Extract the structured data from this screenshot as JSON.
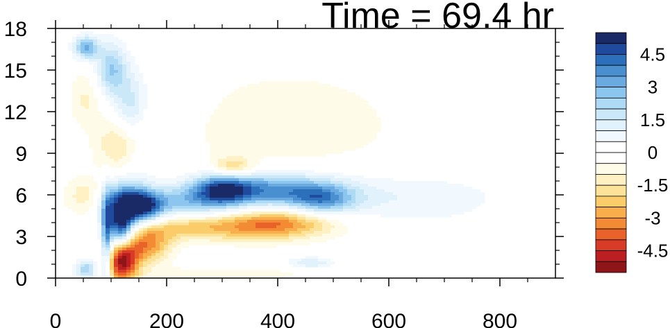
{
  "chart_data": {
    "type": "heatmap",
    "title": "Time = 69.4 hr",
    "xlabel": "",
    "ylabel": "",
    "xlim": [
      0,
      900
    ],
    "ylim": [
      0,
      18
    ],
    "x_ticks": [
      "0",
      "200",
      "400",
      "600",
      "800"
    ],
    "y_ticks": [
      "0",
      "3",
      "6",
      "9",
      "12",
      "15",
      "18"
    ],
    "colorbar": {
      "range": [
        -5.5,
        5.5
      ],
      "step": 0.5,
      "tick_labels": [
        "4.5",
        "3",
        "1.5",
        "0",
        "-1.5",
        "-3",
        "-4.5"
      ],
      "colors": [
        "#1a2a66",
        "#1f4a9e",
        "#2c6fba",
        "#4a8fd0",
        "#6aaae0",
        "#8cc6ee",
        "#aedaf6",
        "#cbe8f9",
        "#e2f2fc",
        "#f2f9fe",
        "#ffffff",
        "#ffffff",
        "#fffbe9",
        "#fff1c4",
        "#fde39a",
        "#fbcd6a",
        "#f8ae4c",
        "#f38a34",
        "#e8622a",
        "#d83b26",
        "#bb1f22",
        "#8e1518"
      ]
    },
    "features": [
      {
        "x": 375,
        "y": 6.3,
        "sx": 90,
        "sy": 0.9,
        "v": 3.8
      },
      {
        "x": 300,
        "y": 6.4,
        "sx": 35,
        "sy": 0.8,
        "v": 3.0
      },
      {
        "x": 480,
        "y": 5.6,
        "sx": 40,
        "sy": 0.8,
        "v": 2.6
      },
      {
        "x": 560,
        "y": 5.8,
        "sx": 120,
        "sy": 1.3,
        "v": 0.8
      },
      {
        "x": 700,
        "y": 5.8,
        "sx": 110,
        "sy": 1.5,
        "v": 0.5
      },
      {
        "x": 230,
        "y": 5.3,
        "sx": 55,
        "sy": 0.9,
        "v": 2.2
      },
      {
        "x": 160,
        "y": 5.1,
        "sx": 25,
        "sy": 0.8,
        "v": 4.0
      },
      {
        "x": 120,
        "y": 5.5,
        "sx": 30,
        "sy": 1.1,
        "v": 4.2
      },
      {
        "x": 118,
        "y": 3.5,
        "sx": 16,
        "sy": 1.1,
        "v": 4.8
      },
      {
        "x": 92,
        "y": 2.5,
        "sx": 7,
        "sy": 2.5,
        "v": 3.2
      },
      {
        "x": 100,
        "y": 15.0,
        "sx": 20,
        "sy": 1.4,
        "v": 2.6
      },
      {
        "x": 135,
        "y": 12.3,
        "sx": 20,
        "sy": 1.8,
        "v": 1.8
      },
      {
        "x": 55,
        "y": 16.6,
        "sx": 16,
        "sy": 0.6,
        "v": 3.2
      },
      {
        "x": 145,
        "y": 8.6,
        "sx": 30,
        "sy": 1.2,
        "v": 1.0
      },
      {
        "x": 120,
        "y": 1.3,
        "sx": 20,
        "sy": 1.1,
        "v": -5.4
      },
      {
        "x": 165,
        "y": 2.5,
        "sx": 30,
        "sy": 1.0,
        "v": -3.2
      },
      {
        "x": 230,
        "y": 3.8,
        "sx": 50,
        "sy": 0.7,
        "v": -2.0
      },
      {
        "x": 410,
        "y": 4.0,
        "sx": 70,
        "sy": 0.8,
        "v": -3.0
      },
      {
        "x": 330,
        "y": 3.6,
        "sx": 60,
        "sy": 0.7,
        "v": -1.5
      },
      {
        "x": 320,
        "y": 8.0,
        "sx": 25,
        "sy": 0.5,
        "v": -2.0
      },
      {
        "x": 120,
        "y": 9.4,
        "sx": 30,
        "sy": 1.4,
        "v": -2.0
      },
      {
        "x": 60,
        "y": 5.9,
        "sx": 30,
        "sy": 1.0,
        "v": -1.5
      },
      {
        "x": 55,
        "y": 13.0,
        "sx": 20,
        "sy": 1.5,
        "v": -1.0
      },
      {
        "x": 420,
        "y": 11.0,
        "sx": 200,
        "sy": 4.0,
        "v": -0.7
      },
      {
        "x": 300,
        "y": 0.3,
        "sx": 120,
        "sy": 0.35,
        "v": -0.9
      },
      {
        "x": 460,
        "y": 1.1,
        "sx": 30,
        "sy": 0.3,
        "v": 1.5
      },
      {
        "x": 55,
        "y": 0.6,
        "sx": 14,
        "sy": 0.5,
        "v": 2.5
      },
      {
        "x": 840,
        "y": 9.5,
        "sx": 40,
        "sy": 1.2,
        "v": 0.5
      },
      {
        "x": 210,
        "y": 14.5,
        "sx": 40,
        "sy": 2.0,
        "v": 0.5
      }
    ]
  }
}
